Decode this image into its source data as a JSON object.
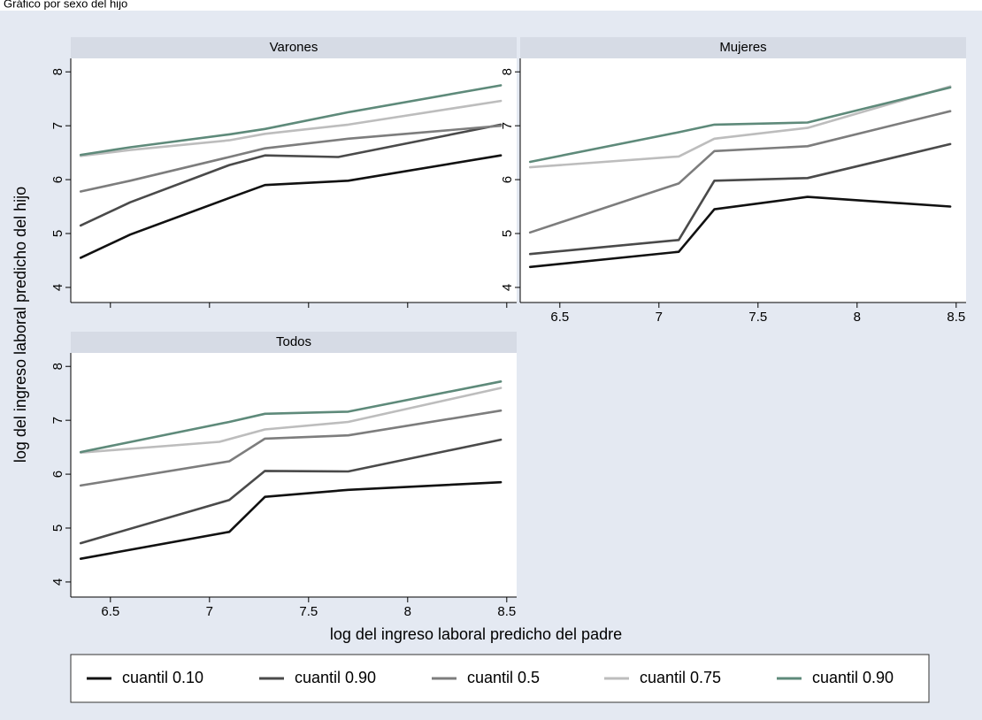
{
  "figure": {
    "top_text": "Gráfico por sexo del hijo",
    "xlabel": "log del ingreso laboral predicho del padre",
    "ylabel": "log del ingreso laboral predicho del hijo",
    "colors": {
      "background": "#e4e9f2",
      "panel": "#ffffff",
      "strip": "#d6dbe5"
    }
  },
  "legend": {
    "placement": "bottom",
    "items": [
      {
        "label": "cuantil 0.10",
        "color": "#111111"
      },
      {
        "label": "cuantil 0.90",
        "color": "#4a4a4a"
      },
      {
        "label": "cuantil 0.5",
        "color": "#7d7d7d"
      },
      {
        "label": "cuantil 0.75",
        "color": "#bdbdbd"
      },
      {
        "label": "cuantil 0.90",
        "color": "#5e8a7a"
      }
    ]
  },
  "chart_data": [
    {
      "type": "line",
      "title": "Varones",
      "xlim": [
        6.3,
        8.55
      ],
      "ylim": [
        3.72,
        8.25
      ],
      "xticks": [
        6.5,
        7,
        7.5,
        8,
        8.5
      ],
      "yticks": [
        4,
        5,
        6,
        7,
        8
      ],
      "show_x_tick_labels": false,
      "grid": false,
      "series": [
        {
          "name": "cuantil 0.10",
          "color": "#111111",
          "points": [
            [
              6.35,
              4.55
            ],
            [
              6.6,
              4.98
            ],
            [
              7.1,
              5.66
            ],
            [
              7.28,
              5.9
            ],
            [
              7.7,
              5.98
            ],
            [
              8.47,
              6.45
            ]
          ]
        },
        {
          "name": "cuantil 0.90",
          "color": "#4a4a4a",
          "points": [
            [
              6.35,
              5.15
            ],
            [
              6.6,
              5.58
            ],
            [
              7.1,
              6.27
            ],
            [
              7.28,
              6.45
            ],
            [
              7.65,
              6.42
            ],
            [
              8.47,
              7.02
            ]
          ]
        },
        {
          "name": "cuantil 0.5",
          "color": "#7d7d7d",
          "points": [
            [
              6.35,
              5.78
            ],
            [
              6.6,
              5.98
            ],
            [
              7.1,
              6.42
            ],
            [
              7.28,
              6.58
            ],
            [
              7.7,
              6.76
            ],
            [
              8.47,
              7.0
            ]
          ]
        },
        {
          "name": "cuantil 0.75",
          "color": "#bdbdbd",
          "points": [
            [
              6.35,
              6.44
            ],
            [
              6.6,
              6.55
            ],
            [
              7.1,
              6.73
            ],
            [
              7.28,
              6.85
            ],
            [
              7.7,
              7.02
            ],
            [
              8.47,
              7.46
            ]
          ]
        },
        {
          "name": "cuantil 0.90",
          "color": "#5e8a7a",
          "points": [
            [
              6.35,
              6.46
            ],
            [
              6.6,
              6.6
            ],
            [
              7.1,
              6.84
            ],
            [
              7.28,
              6.94
            ],
            [
              7.7,
              7.25
            ],
            [
              8.47,
              7.75
            ]
          ]
        }
      ]
    },
    {
      "type": "line",
      "title": "Mujeres",
      "xlim": [
        6.3,
        8.55
      ],
      "ylim": [
        3.72,
        8.25
      ],
      "xticks": [
        6.5,
        7,
        7.5,
        8,
        8.5
      ],
      "yticks": [
        4,
        5,
        6,
        7,
        8
      ],
      "show_x_tick_labels": true,
      "grid": false,
      "series": [
        {
          "name": "cuantil 0.10",
          "color": "#111111",
          "points": [
            [
              6.35,
              4.38
            ],
            [
              7.1,
              4.66
            ],
            [
              7.28,
              5.45
            ],
            [
              7.75,
              5.68
            ],
            [
              8.47,
              5.5
            ]
          ]
        },
        {
          "name": "cuantil 0.90",
          "color": "#4a4a4a",
          "points": [
            [
              6.35,
              4.62
            ],
            [
              7.1,
              4.88
            ],
            [
              7.28,
              5.98
            ],
            [
              7.75,
              6.03
            ],
            [
              8.47,
              6.66
            ]
          ]
        },
        {
          "name": "cuantil 0.5",
          "color": "#7d7d7d",
          "points": [
            [
              6.35,
              5.02
            ],
            [
              7.1,
              5.93
            ],
            [
              7.28,
              6.53
            ],
            [
              7.75,
              6.62
            ],
            [
              8.47,
              7.27
            ]
          ]
        },
        {
          "name": "cuantil 0.75",
          "color": "#bdbdbd",
          "points": [
            [
              6.35,
              6.23
            ],
            [
              7.1,
              6.43
            ],
            [
              7.28,
              6.76
            ],
            [
              7.75,
              6.96
            ],
            [
              8.47,
              7.73
            ]
          ]
        },
        {
          "name": "cuantil 0.90",
          "color": "#5e8a7a",
          "points": [
            [
              6.35,
              6.33
            ],
            [
              7.1,
              6.88
            ],
            [
              7.28,
              7.02
            ],
            [
              7.75,
              7.06
            ],
            [
              8.47,
              7.71
            ]
          ]
        }
      ]
    },
    {
      "type": "line",
      "title": "Todos",
      "xlim": [
        6.3,
        8.55
      ],
      "ylim": [
        3.72,
        8.25
      ],
      "xticks": [
        6.5,
        7,
        7.5,
        8,
        8.5
      ],
      "yticks": [
        4,
        5,
        6,
        7,
        8
      ],
      "show_x_tick_labels": true,
      "grid": false,
      "series": [
        {
          "name": "cuantil 0.10",
          "color": "#111111",
          "points": [
            [
              6.35,
              4.43
            ],
            [
              7.1,
              4.93
            ],
            [
              7.28,
              5.58
            ],
            [
              7.7,
              5.71
            ],
            [
              8.47,
              5.85
            ]
          ]
        },
        {
          "name": "cuantil 0.90",
          "color": "#4a4a4a",
          "points": [
            [
              6.35,
              4.72
            ],
            [
              7.1,
              5.52
            ],
            [
              7.28,
              6.06
            ],
            [
              7.7,
              6.05
            ],
            [
              8.47,
              6.64
            ]
          ]
        },
        {
          "name": "cuantil 0.5",
          "color": "#7d7d7d",
          "points": [
            [
              6.35,
              5.79
            ],
            [
              7.1,
              6.24
            ],
            [
              7.28,
              6.66
            ],
            [
              7.7,
              6.72
            ],
            [
              8.47,
              7.18
            ]
          ]
        },
        {
          "name": "cuantil 0.75",
          "color": "#bdbdbd",
          "points": [
            [
              6.35,
              6.4
            ],
            [
              7.05,
              6.6
            ],
            [
              7.28,
              6.83
            ],
            [
              7.7,
              6.97
            ],
            [
              8.47,
              7.6
            ]
          ]
        },
        {
          "name": "cuantil 0.90",
          "color": "#5e8a7a",
          "points": [
            [
              6.35,
              6.41
            ],
            [
              7.1,
              6.97
            ],
            [
              7.28,
              7.12
            ],
            [
              7.7,
              7.16
            ],
            [
              8.47,
              7.72
            ]
          ]
        }
      ]
    }
  ]
}
